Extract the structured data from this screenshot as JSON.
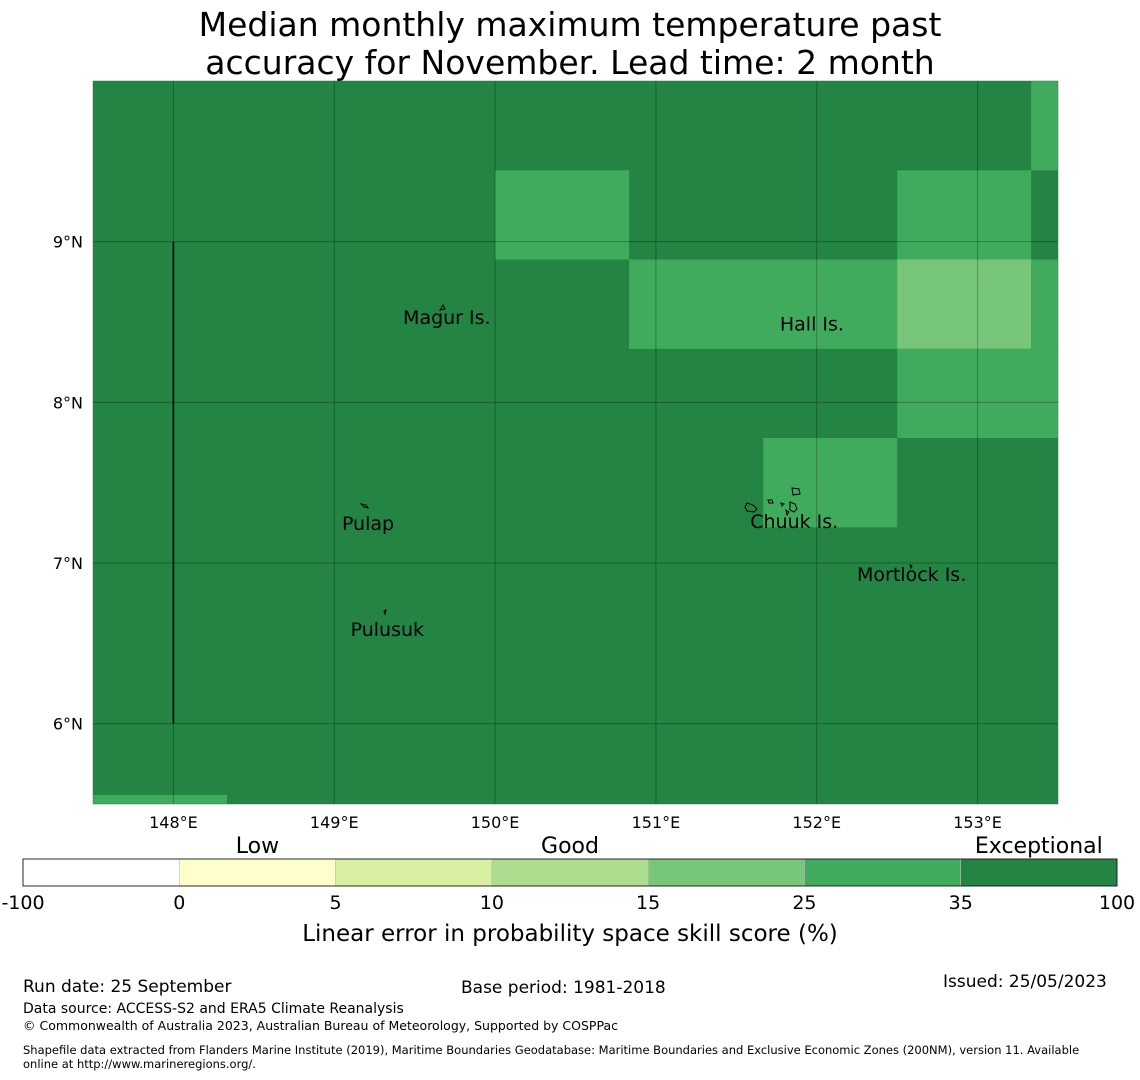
{
  "title": {
    "line1": "Median monthly maximum temperature past",
    "line2": "accuracy for November. Lead time: 2 month"
  },
  "map": {
    "lon_range": [
      147.5,
      153.5
    ],
    "lat_range": [
      5.5,
      10.0
    ],
    "lon_ticks": [
      148,
      149,
      150,
      151,
      152,
      153
    ],
    "lon_tick_labels": [
      "148°E",
      "149°E",
      "150°E",
      "151°E",
      "152°E",
      "153°E"
    ],
    "lat_ticks": [
      6,
      7,
      8,
      9
    ],
    "lat_tick_labels": [
      "6°N",
      "7°N",
      "8°N",
      "9°N"
    ],
    "base_color": "#238443",
    "cells": [
      {
        "lon": [
          150.0,
          150.833
        ],
        "lat": [
          8.889,
          9.444
        ],
        "color": "#41ab5d"
      },
      {
        "lon": [
          150.833,
          152.5
        ],
        "lat": [
          8.333,
          8.889
        ],
        "color": "#41ab5d"
      },
      {
        "lon": [
          152.5,
          153.333
        ],
        "lat": [
          8.333,
          8.889
        ],
        "color": "#78c679"
      },
      {
        "lon": [
          153.333,
          153.5
        ],
        "lat": [
          8.333,
          8.889
        ],
        "color": "#41ab5d"
      },
      {
        "lon": [
          152.5,
          153.333
        ],
        "lat": [
          8.889,
          9.444
        ],
        "color": "#41ab5d"
      },
      {
        "lon": [
          153.333,
          153.5
        ],
        "lat": [
          9.444,
          10.0
        ],
        "color": "#41ab5d"
      },
      {
        "lon": [
          152.5,
          153.5
        ],
        "lat": [
          7.778,
          8.333
        ],
        "color": "#41ab5d"
      },
      {
        "lon": [
          151.667,
          152.5
        ],
        "lat": [
          7.222,
          7.778
        ],
        "color": "#41ab5d"
      },
      {
        "lon": [
          147.5,
          148.333
        ],
        "lat": [
          5.5,
          5.556
        ],
        "color": "#41ab5d"
      }
    ],
    "places": [
      {
        "name": "Magur Is.",
        "lon": 149.7,
        "lat": 8.53
      },
      {
        "name": "Hall Is.",
        "lon": 151.97,
        "lat": 8.49
      },
      {
        "name": "Pulap",
        "lon": 149.21,
        "lat": 7.25
      },
      {
        "name": "Chuuk Is.",
        "lon": 151.86,
        "lat": 7.26
      },
      {
        "name": "Mortlock Is.",
        "lon": 152.59,
        "lat": 6.93
      },
      {
        "name": "Pulusuk",
        "lon": 149.33,
        "lat": 6.59
      }
    ],
    "boundary_line": {
      "lon": 148.0,
      "lat": [
        6.0,
        9.0
      ]
    }
  },
  "colorbar": {
    "bin_labels": [
      "-100",
      "0",
      "5",
      "10",
      "15",
      "25",
      "35",
      "100"
    ],
    "colors": [
      "#ffffff",
      "#ffffcc",
      "#d9f0a3",
      "#addd8e",
      "#78c679",
      "#41ab5d",
      "#238443"
    ],
    "category_labels": [
      "Low",
      "Good",
      "Exceptional"
    ],
    "label": "Linear error in probability space skill score (%)"
  },
  "footer": {
    "run_date": "Run date: 25 September",
    "base_period": "Base period: 1981-2018",
    "issued": "Issued: 25/05/2023",
    "data_source": "Data source: ACCESS-S2 and ERA5 Climate Reanalysis",
    "copyright": "© Commonwealth of Australia 2023, Australian Bureau of Meteorology, Supported by COSPPac",
    "shapefile_line1": "Shapefile data extracted from Flanders Marine Institute (2019), Maritime Boundaries Geodatabase: Maritime Boundaries and Exclusive Economic Zones (200NM), version 11. Available",
    "shapefile_line2": "online at http://www.marineregions.org/."
  }
}
